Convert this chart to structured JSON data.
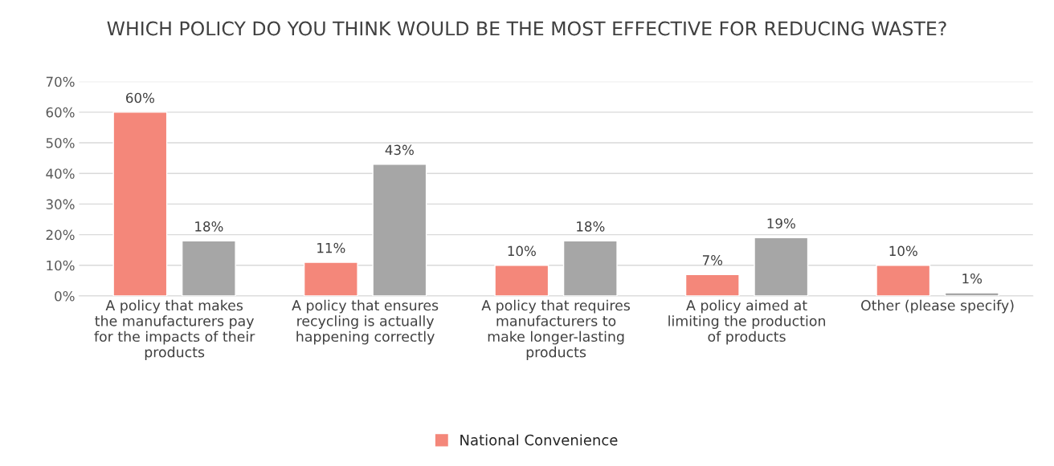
{
  "chart_data": {
    "type": "bar",
    "title": "WHICH POLICY DO YOU THINK WOULD BE THE MOST EFFECTIVE FOR REDUCING WASTE?",
    "categories": [
      "A policy that makes\nthe manufacturers pay\nfor the impacts of their\nproducts",
      "A policy that ensures\nrecycling is actually\nhappening correctly",
      "A policy that requires\nmanufacturers to\nmake longer-lasting\nproducts",
      "A policy aimed at\nlimiting the production\nof products",
      "Other (please specify)"
    ],
    "series": [
      {
        "name": "National Convenience",
        "color": "#f4877a",
        "values": [
          60,
          11,
          10,
          7,
          10
        ],
        "value_labels": [
          "60%",
          "11%",
          "10%",
          "7%",
          "10%"
        ]
      },
      {
        "color": "#a6a6a6",
        "values": [
          18,
          43,
          18,
          19,
          1
        ],
        "value_labels": [
          "18%",
          "43%",
          "18%",
          "19%",
          "1%"
        ]
      }
    ],
    "ylim": [
      0,
      70
    ],
    "yticks": [
      {
        "value": 0,
        "label": "0%"
      },
      {
        "value": 10,
        "label": "10%"
      },
      {
        "value": 20,
        "label": "20%"
      },
      {
        "value": 30,
        "label": "30%"
      },
      {
        "value": 40,
        "label": "40%"
      },
      {
        "value": 50,
        "label": "50%"
      },
      {
        "value": 60,
        "label": "60%"
      },
      {
        "value": 70,
        "label": "70%"
      }
    ],
    "grid": "y",
    "legend": "bottom"
  }
}
